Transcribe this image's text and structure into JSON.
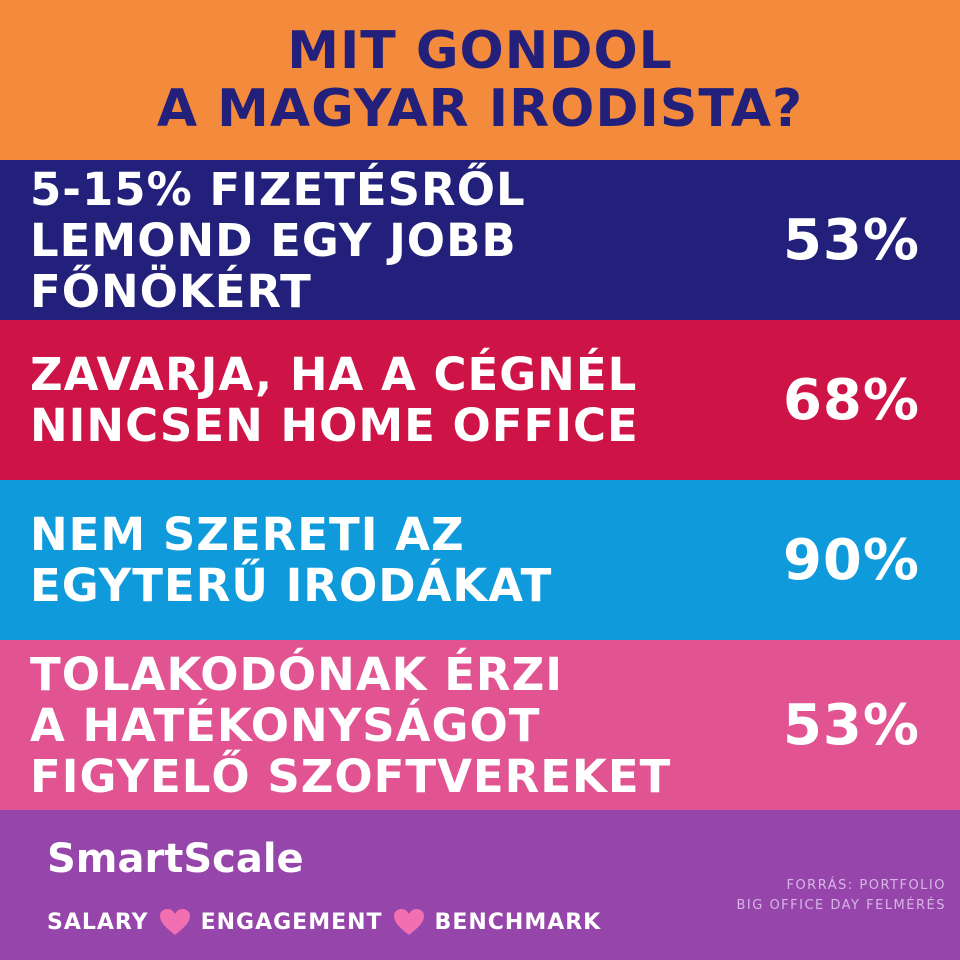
{
  "header": {
    "line1": "MIT GONDOL",
    "line2": "A MAGYAR IRODISTA?",
    "background": "#F48A3C",
    "text_color": "#22207A"
  },
  "rows": [
    {
      "lines": [
        "5-15% FIZETÉSRŐL",
        "LEMOND EGY JOBB",
        "FŐNÖKÉRT"
      ],
      "percent": "53%",
      "background": "#22207A"
    },
    {
      "lines": [
        "ZAVARJA, HA A CÉGNÉL",
        "NINCSEN HOME OFFICE"
      ],
      "percent": "68%",
      "background": "#CE1346"
    },
    {
      "lines": [
        "NEM SZERETI AZ",
        "EGYTERŰ IRODÁKAT"
      ],
      "percent": "90%",
      "background": "#0E9ADB"
    },
    {
      "lines": [
        "TOLAKODÓNAK ÉRZI",
        "A HATÉKONYSÁGOT",
        "FIGYELŐ SZOFTVEREKET"
      ],
      "percent": "53%",
      "background": "#E15491"
    }
  ],
  "footer": {
    "background": "#9645AB",
    "brand": "SmartScale",
    "tagline": [
      "SALARY",
      "ENGAGEMENT",
      "BENCHMARK"
    ],
    "heart_icon": "heart-icon",
    "heart_color": "#F26FB1",
    "source_line1": "FORRÁS: PORTFOLIO",
    "source_line2": "BIG OFFICE DAY FELMÉRÉS"
  }
}
